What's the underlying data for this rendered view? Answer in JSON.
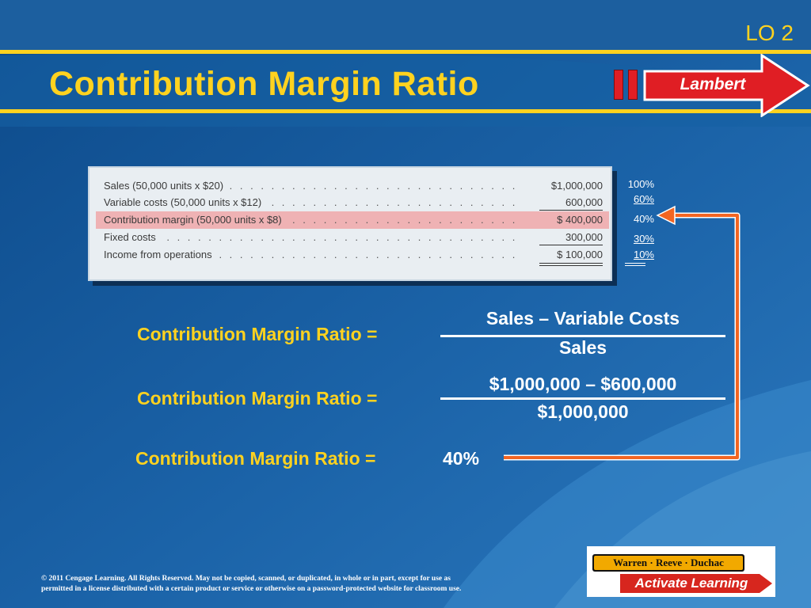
{
  "slide": {
    "lo_tag": "LO 2",
    "title": "Contribution Margin Ratio",
    "company_label": "Lambert"
  },
  "statement": {
    "rows": [
      {
        "label": "Sales (50,000 units x $20)",
        "amount": "$1,000,000",
        "pct": "100%"
      },
      {
        "label": "Variable costs (50,000 units x $12)",
        "amount": "600,000",
        "pct": "60%"
      },
      {
        "label": "Contribution margin (50,000 units x $8)",
        "amount": "$   400,000",
        "pct": "40%"
      },
      {
        "label": "Fixed costs",
        "amount": "300,000",
        "pct": "30%"
      },
      {
        "label": "Income from operations",
        "amount": "$   100,000",
        "pct": "10%"
      }
    ]
  },
  "formulas": {
    "line1_label": "Contribution Margin Ratio =",
    "line1_numerator": "Sales – Variable Costs",
    "line1_denominator": "Sales",
    "line2_label": "Contribution Margin Ratio =",
    "line2_numerator": "$1,000,000 – $600,000",
    "line2_denominator": "$1,000,000",
    "line3_label": "Contribution Margin Ratio =",
    "line3_value": "40%"
  },
  "footer": {
    "copyright_line1": "© 2011 Cengage Learning. All Rights Reserved. May not be copied, scanned, or duplicated, in whole or in part, except for use as",
    "copyright_line2": "permitted in a license distributed with a certain product or service or otherwise on a password-protected website for classroom use."
  },
  "logo": {
    "authors": "Warren · Reeve · Duchac",
    "tagline": "Activate Learning"
  },
  "colors": {
    "background": "#1a5b9a",
    "title": "#ffd21f",
    "accent_red": "#e01e24",
    "connector_orange": "#f26522",
    "highlight_pink": "#efb2b4"
  }
}
